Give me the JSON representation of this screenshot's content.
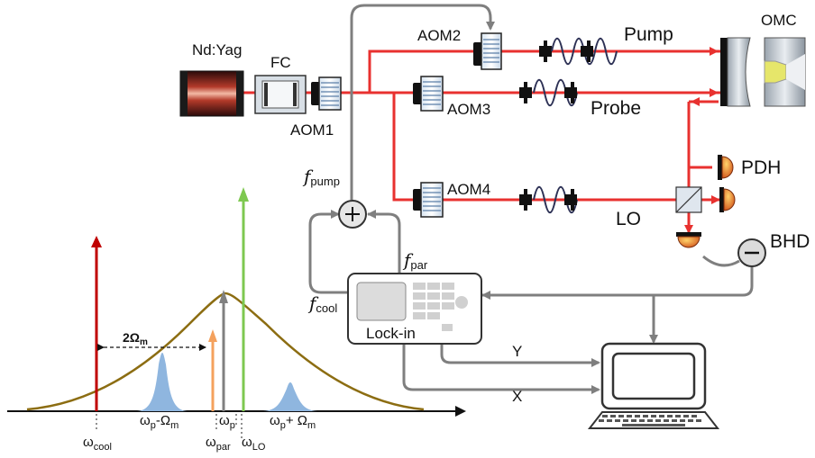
{
  "labels": {
    "laser": "Nd:Yag",
    "fc": "FC",
    "aom1": "AOM1",
    "aom2": "AOM2",
    "aom3": "AOM3",
    "aom4": "AOM4",
    "pump": "Pump",
    "probe": "Probe",
    "lo": "LO",
    "omc": "OMC",
    "pdh": "PDH",
    "bhd": "BHD",
    "lockin": "Lock-in",
    "y": "Y",
    "x": "X",
    "f_pump": "f",
    "f_pump_sub": "pump",
    "f_par": "f",
    "f_par_sub": "par",
    "f_cool": "f",
    "f_cool_sub": "cool",
    "two_omega": "2Ω",
    "two_omega_sub": "m"
  },
  "spectrum": {
    "w_cool": "ω",
    "w_cool_sub": "cool",
    "w_par": "ω",
    "w_par_sub": "par",
    "w_lo": "ω",
    "w_lo_sub": "LO",
    "wp": "ω",
    "wp_sub": "p",
    "sb_minus": "ω",
    "sb_minus_sub": "p",
    "sb_minus_rest": "-Ω",
    "sb_minus_rest_sub": "m",
    "sb_plus": "ω",
    "sb_plus_sub": "p",
    "sb_plus_rest": "+ Ω",
    "sb_plus_rest_sub": "m"
  },
  "colors": {
    "beam": "#e8312f",
    "cable": "#7f7f7f",
    "cool_arrow": "#c00000",
    "lo_arrow": "#7ec850",
    "par_arrow": "#f4a15d",
    "pump_arrow": "#808080",
    "envelope": "#8c6d12",
    "peaks": "#8fb6df"
  }
}
